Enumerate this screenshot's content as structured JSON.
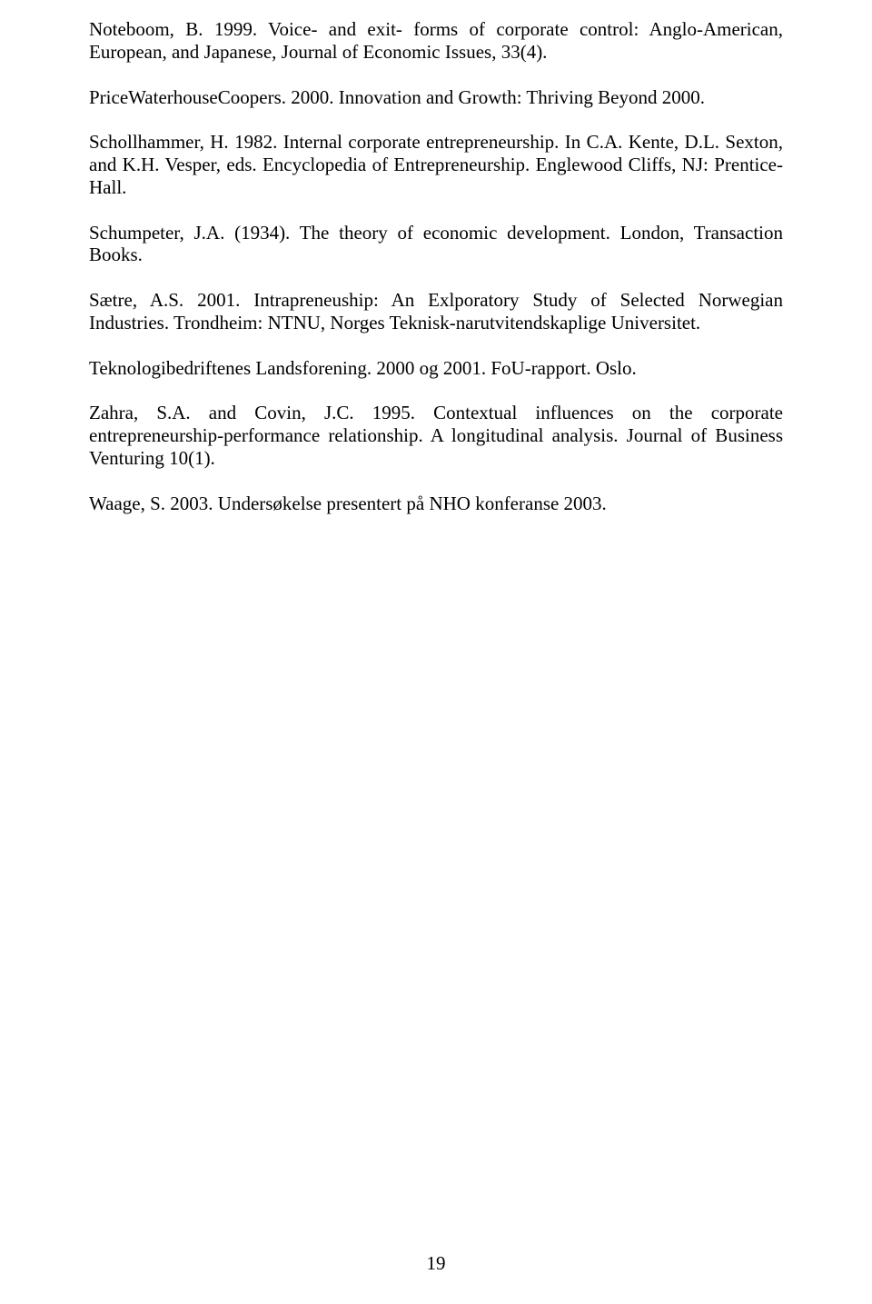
{
  "references": [
    "Noteboom, B. 1999. Voice- and exit- forms of corporate control: Anglo-American, European, and Japanese, Journal of Economic Issues, 33(4).",
    "PriceWaterhouseCoopers. 2000. Innovation and Growth: Thriving Beyond 2000.",
    "Schollhammer, H. 1982. Internal corporate entrepreneurship. In C.A. Kente, D.L. Sexton, and K.H. Vesper, eds. Encyclopedia of Entrepreneurship. Englewood Cliffs, NJ: Prentice-Hall.",
    "Schumpeter, J.A. (1934). The theory of economic development. London, Transaction Books.",
    "Sætre, A.S. 2001. Intrapreneuship: An Exlporatory Study of Selected Norwegian Industries. Trondheim: NTNU, Norges Teknisk-narutvitendskaplige Universitet.",
    "Teknologibedriftenes Landsforening. 2000 og 2001. FoU-rapport. Oslo.",
    "Zahra, S.A. and Covin, J.C. 1995. Contextual influences on the corporate entrepreneurship-performance relationship. A longitudinal analysis. Journal of Business Venturing 10(1).",
    "Waage, S. 2003. Undersøkelse presentert på NHO konferanse 2003."
  ],
  "page_number": "19"
}
